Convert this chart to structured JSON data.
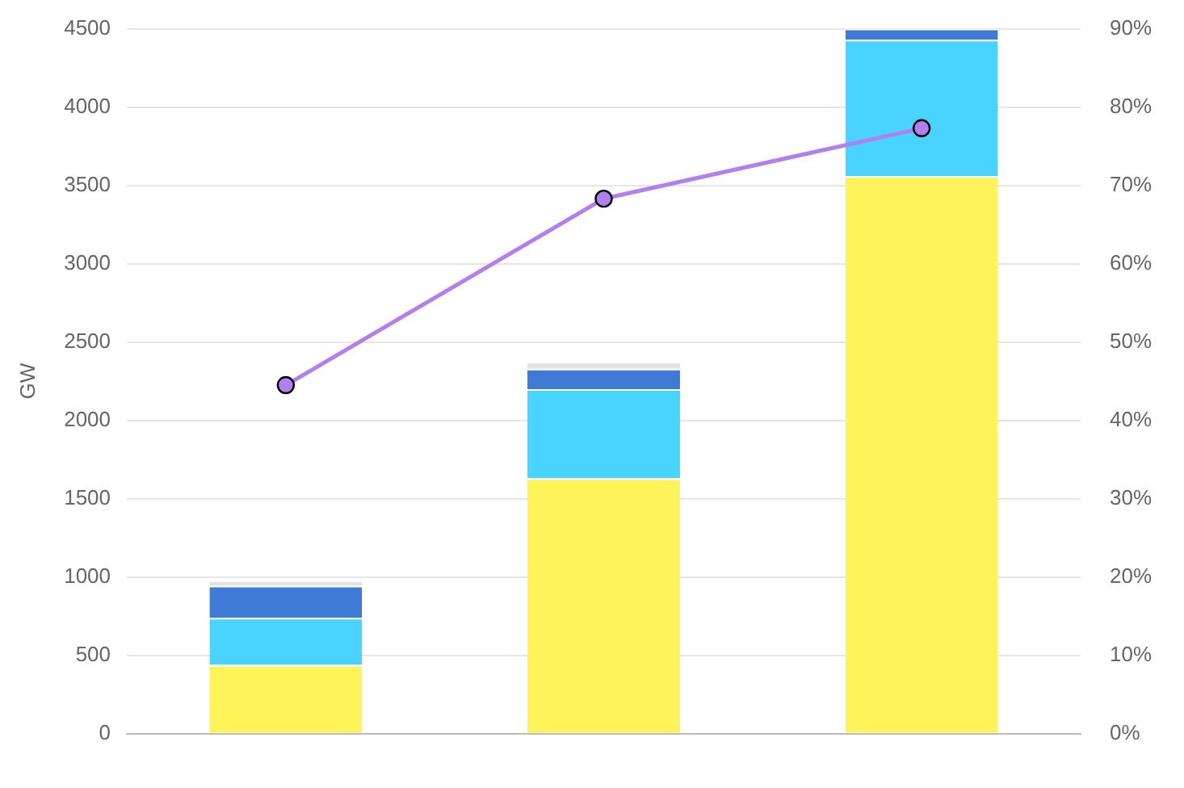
{
  "chart_data": {
    "type": "bar",
    "stacked": true,
    "ylabel": "GW",
    "categories": [
      null,
      null,
      null
    ],
    "ylim": [
      0,
      4500
    ],
    "yticks": [
      0,
      500,
      1000,
      1500,
      2000,
      2500,
      3000,
      3500,
      4000,
      4500
    ],
    "y2lim": [
      0,
      90
    ],
    "y2ticks": [
      {
        "value": 0,
        "label": "0%"
      },
      {
        "value": 10,
        "label": "10%"
      },
      {
        "value": 20,
        "label": "20%"
      },
      {
        "value": 30,
        "label": "30%"
      },
      {
        "value": 40,
        "label": "40%"
      },
      {
        "value": 50,
        "label": "50%"
      },
      {
        "value": 60,
        "label": "60%"
      },
      {
        "value": 70,
        "label": "70%"
      },
      {
        "value": 80,
        "label": "80%"
      },
      {
        "value": 90,
        "label": "90%"
      }
    ],
    "grid": "y",
    "legend": false,
    "marker": "circle",
    "line_style": "solid",
    "series": [
      {
        "color": "#fef45a",
        "values": [
          440,
          1630,
          3560
        ]
      },
      {
        "color": "#48d4fe",
        "values": [
          300,
          570,
          870
        ]
      },
      {
        "color": "#3f7bd6",
        "values": [
          205,
          130,
          70
        ]
      },
      {
        "color": "#e3e3e3",
        "values": [
          35,
          45,
          null
        ]
      },
      {
        "type": "line",
        "axis": "y2",
        "color": "#b27ff0",
        "values": [
          44.5,
          68.3,
          77.3
        ]
      }
    ]
  }
}
